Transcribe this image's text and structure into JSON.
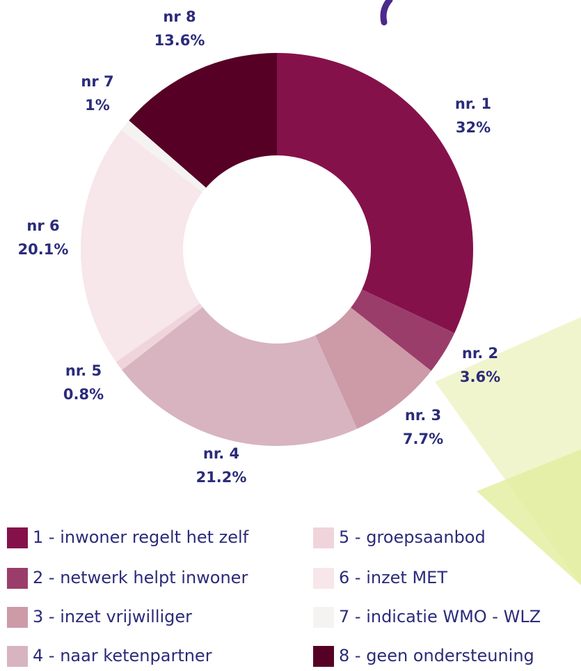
{
  "chart_data": {
    "type": "donut",
    "categories": [
      "nr. 1",
      "nr. 2",
      "nr. 3",
      "nr. 4",
      "nr. 5",
      "nr 6",
      "nr 7",
      "nr 8"
    ],
    "values": [
      32,
      3.6,
      7.7,
      21.2,
      0.8,
      20.1,
      1,
      13.6
    ],
    "value_labels": [
      "32%",
      "3.6%",
      "7.7%",
      "21.2%",
      "0.8%",
      "20.1%",
      "1%",
      "13.6%"
    ],
    "legend_labels": [
      "1 - inwoner regelt het zelf",
      "2 - netwerk helpt inwoner",
      "3 - inzet vrijwilliger",
      "4 - naar ketenpartner",
      "5 - groepsaanbod",
      "6 - inzet MET",
      "7 - indicatie WMO - WLZ",
      "8 - geen ondersteuning"
    ],
    "colors": [
      "#85114b",
      "#9b3d6a",
      "#cd9aa8",
      "#d7b4c0",
      "#f0d4dc",
      "#f7e6ea",
      "#f5f2f2",
      "#560026"
    ]
  }
}
